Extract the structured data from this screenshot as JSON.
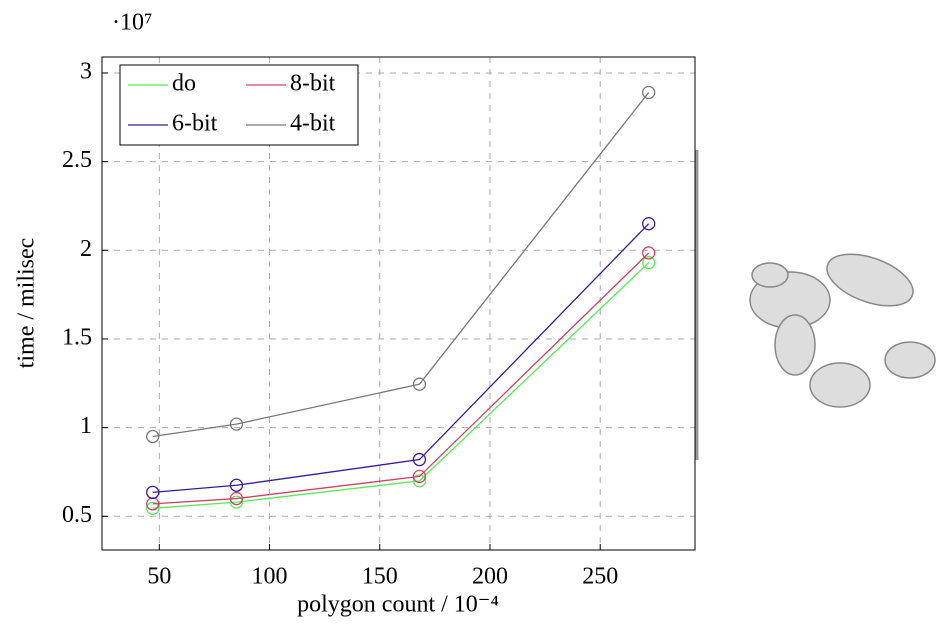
{
  "chart_data": {
    "type": "line",
    "multiplier": "·10⁷",
    "xlabel": "polygon count / 10⁻⁴",
    "ylabel": "time / milisec",
    "x": [
      47,
      85,
      168,
      272
    ],
    "series": [
      {
        "name": "do",
        "color": "#55ee55",
        "values": [
          0.545,
          0.58,
          0.7,
          1.93
        ]
      },
      {
        "name": "8-bit",
        "color": "#d0406a",
        "values": [
          0.57,
          0.6,
          0.725,
          1.985
        ]
      },
      {
        "name": "6-bit",
        "color": "#3a1a99",
        "values": [
          0.635,
          0.675,
          0.82,
          2.15
        ]
      },
      {
        "name": "4-bit",
        "color": "#777777",
        "values": [
          0.95,
          1.02,
          1.245,
          2.89
        ]
      }
    ],
    "xlim": [
      24,
      293
    ],
    "ylim": [
      0.31,
      3.09
    ],
    "xticks": [
      50,
      100,
      150,
      200,
      250
    ],
    "yticks": [
      0.5,
      1,
      1.5,
      2,
      2.5,
      3
    ],
    "grid": true,
    "legend": "upper left"
  }
}
